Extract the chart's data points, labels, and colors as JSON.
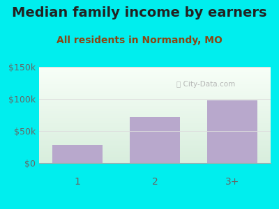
{
  "title": "Median family income by earners",
  "subtitle": "All residents in Normandy, MO",
  "categories": [
    "1",
    "2",
    "3+"
  ],
  "values": [
    28000,
    72000,
    98000
  ],
  "bar_color": "#b8a8cc",
  "outer_bg": "#00EEEE",
  "ylim": [
    0,
    150000
  ],
  "yticks": [
    0,
    50000,
    100000,
    150000
  ],
  "ytick_labels": [
    "$0",
    "$50k",
    "$100k",
    "$150k"
  ],
  "title_fontsize": 14,
  "subtitle_fontsize": 10,
  "title_color": "#222222",
  "subtitle_color": "#8B4513",
  "tick_label_color": "#666666",
  "watermark": "ⓘ City-Data.com",
  "watermark_color": "#aaaaaa",
  "grid_color": "#dddddd",
  "inner_bg_top": "#d8eedd",
  "inner_bg_bottom": "#f8fff8"
}
